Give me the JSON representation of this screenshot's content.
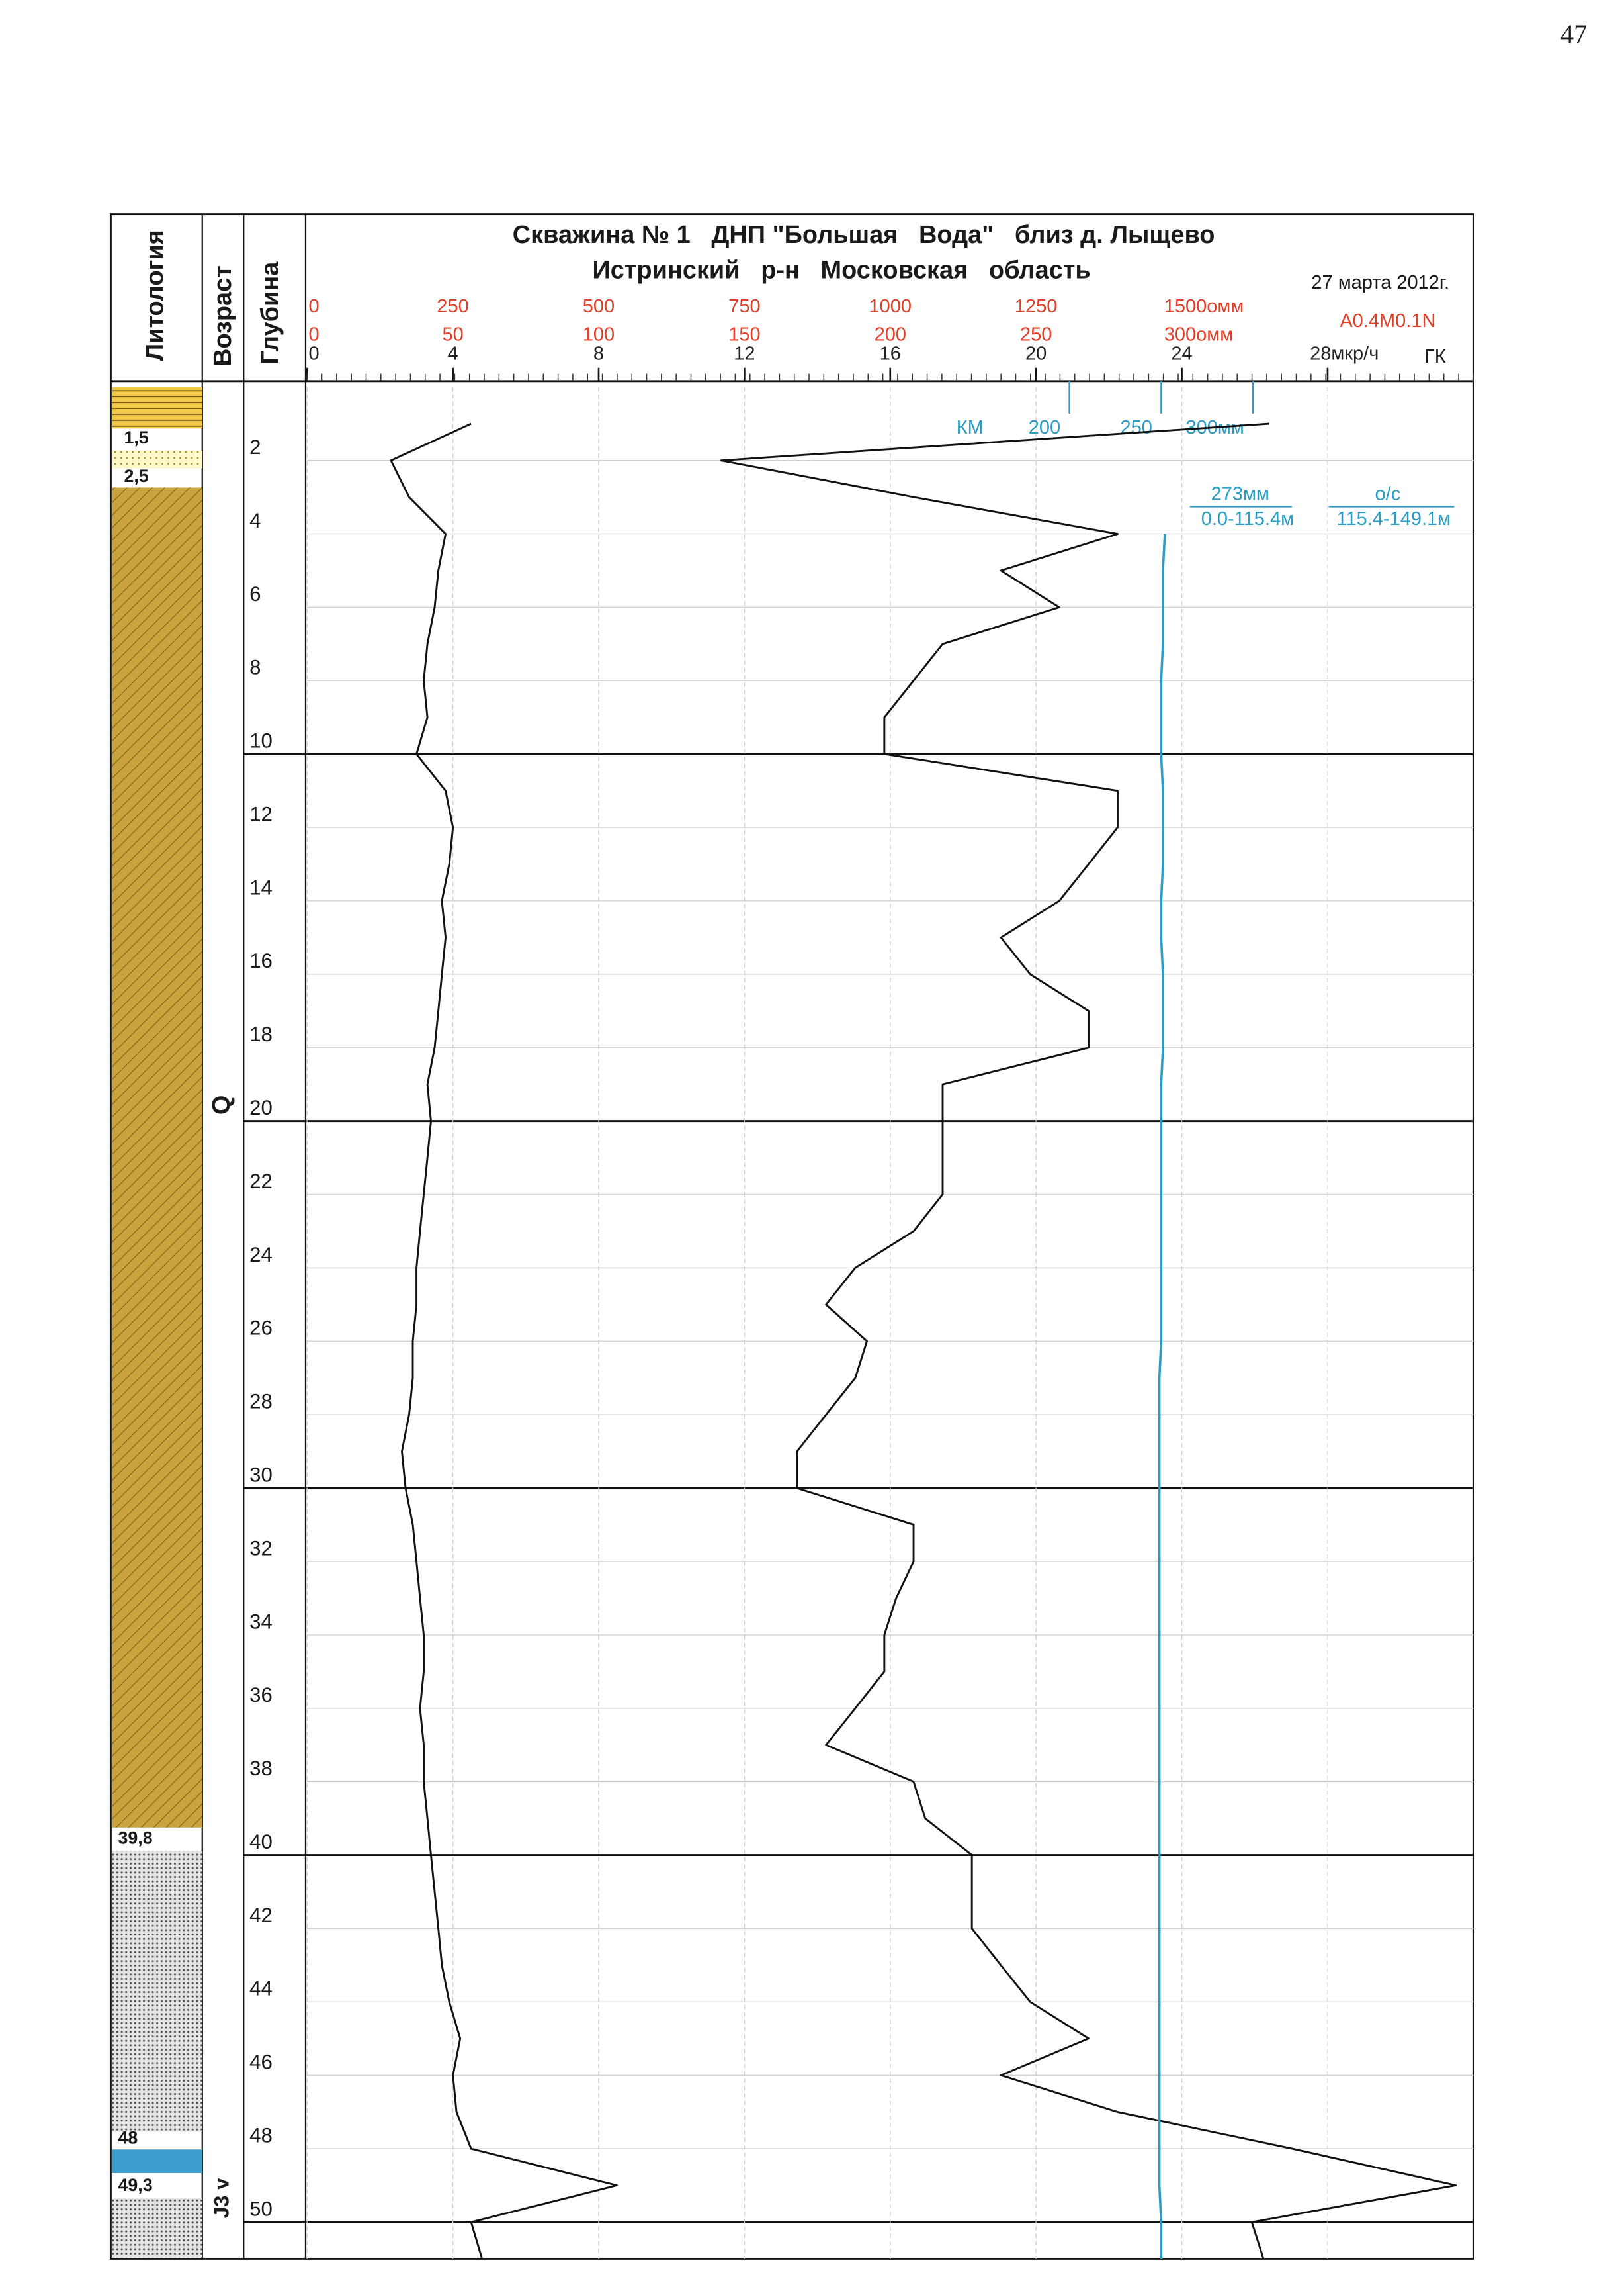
{
  "page_number": "47",
  "chart_data": {
    "type": "line",
    "title": "Скважина № 1   ДНП \"Большая   Вода\"   близ д. Лыщево",
    "subtitle": "Истринский   р-н   Московская   область",
    "date": "27 марта 2012г.",
    "columns": [
      "Литология",
      "Возраст",
      "Глубина"
    ],
    "age_labels": [
      "Q",
      "J3 v"
    ],
    "lithology_labels": [
      "1,5",
      "2,5",
      "39,8",
      "48",
      "49,3"
    ],
    "annotations": [
      "273мм",
      "0.0-115.4м",
      "о/с",
      "115.4-149.1м"
    ],
    "ylim": [
      0,
      51
    ],
    "yticks": [
      2,
      4,
      6,
      8,
      10,
      12,
      14,
      16,
      18,
      20,
      22,
      24,
      26,
      28,
      30,
      32,
      34,
      36,
      38,
      40,
      42,
      44,
      46,
      48,
      50
    ],
    "grid": true,
    "scales": [
      {
        "xlim": [
          0,
          2000
        ],
        "xticks": [
          0,
          250,
          500,
          750,
          1000,
          1250,
          {
            "value": 1500,
            "label": "1500омм"
          }
        ],
        "color": "#e0402a"
      },
      {
        "xlim": [
          0,
          400
        ],
        "xticks": [
          0,
          50,
          100,
          150,
          200,
          250,
          {
            "value": 300,
            "label": "300омм"
          }
        ],
        "color": "#e0402a"
      },
      {
        "xlim": [
          0,
          32
        ],
        "xticks": [
          0,
          4,
          8,
          12,
          16,
          20,
          24,
          {
            "value": 28,
            "label": "28мкр/ч"
          }
        ],
        "color": "#222222"
      },
      {
        "xlim": [
          -215,
          420
        ],
        "xticks": [
          200,
          250,
          {
            "value": 300,
            "label": "300мм"
          }
        ],
        "color": "#2b9cc4"
      }
    ],
    "depth": [
      1,
      2,
      3,
      4,
      5,
      6,
      7,
      8,
      9,
      10,
      11,
      12,
      13,
      14,
      15,
      16,
      17,
      18,
      19,
      20,
      21,
      22,
      23,
      24,
      25,
      26,
      27,
      28,
      29,
      30,
      31,
      32,
      33,
      34,
      35,
      36,
      37,
      38,
      39,
      40,
      41,
      42,
      43,
      44,
      45,
      46,
      47,
      48,
      49,
      50,
      51
    ],
    "series": [
      {
        "name": "A0.4M0.1N",
        "color": "#111111",
        "scale": 0,
        "values": [
          1650,
          710,
          1040,
          1390,
          1190,
          1290,
          1090,
          1040,
          990,
          990,
          1390,
          1390,
          1340,
          1290,
          1190,
          1240,
          1340,
          1340,
          1090,
          1090,
          1090,
          1090,
          1040,
          940,
          890,
          960,
          940,
          890,
          840,
          840,
          1040,
          1040,
          1010,
          990,
          990,
          940,
          890,
          1040,
          1060,
          1140,
          1140,
          1140,
          1190,
          1240,
          1340,
          1190,
          1390,
          1690,
          1970,
          1620,
          1640
        ]
      },
      {
        "name": "ГК",
        "color": "#111111",
        "scale": 2,
        "values": [
          4.5,
          2.3,
          2.8,
          3.8,
          3.6,
          3.5,
          3.3,
          3.2,
          3.3,
          3.0,
          3.8,
          4.0,
          3.9,
          3.7,
          3.8,
          3.7,
          3.6,
          3.5,
          3.3,
          3.4,
          3.3,
          3.2,
          3.1,
          3.0,
          3.0,
          2.9,
          2.9,
          2.8,
          2.6,
          2.7,
          2.9,
          3.0,
          3.1,
          3.2,
          3.2,
          3.1,
          3.2,
          3.2,
          3.3,
          3.4,
          3.5,
          3.6,
          3.7,
          3.9,
          4.2,
          4.0,
          4.1,
          4.5,
          8.5,
          4.5,
          4.8
        ]
      },
      {
        "name": "КМ",
        "color": "#2b9cc4",
        "scale": 3,
        "values": [
          null,
          null,
          null,
          252,
          251,
          251,
          251,
          250,
          250,
          250,
          251,
          251,
          251,
          250,
          250,
          251,
          251,
          251,
          250,
          250,
          250,
          250,
          250,
          250,
          250,
          250,
          249,
          249,
          249,
          249,
          249,
          249,
          249,
          249,
          249,
          249,
          249,
          249,
          249,
          249,
          249,
          249,
          249,
          249,
          249,
          249,
          249,
          249,
          249,
          250,
          250
        ]
      }
    ]
  }
}
